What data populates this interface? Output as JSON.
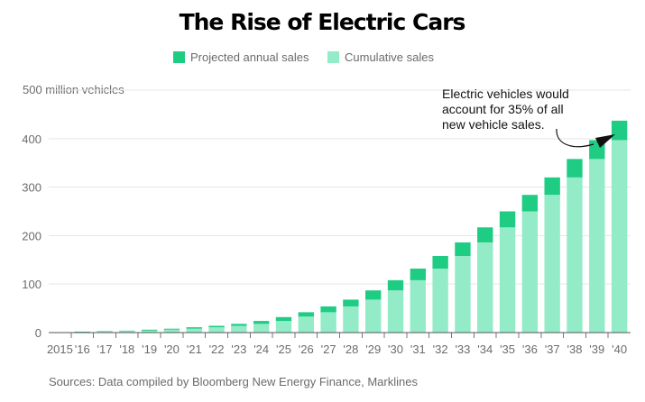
{
  "title": "The Rise of Electric Cars",
  "legend": [
    {
      "label": "Projected annual sales",
      "color": "#1fcc83"
    },
    {
      "label": "Cumulative sales",
      "color": "#93ebc8"
    }
  ],
  "annotation": {
    "lines": [
      "Electric vehicles would",
      "account for 35% of all",
      "new vehicle sales."
    ],
    "target_category": "'40"
  },
  "source": "Sources: Data compiled by Bloomberg New Energy Finance, Marklines",
  "chart_data": {
    "type": "bar",
    "stacked": true,
    "title": "The Rise of Electric Cars",
    "xlabel": "",
    "ylabel": "",
    "y_axis_top_label": "500 million vehicles",
    "y_tick_labels": [
      "0",
      "100",
      "200",
      "300",
      "400"
    ],
    "ylim": [
      0,
      500
    ],
    "y_ticks": [
      0,
      100,
      200,
      300,
      400
    ],
    "grid": true,
    "legend_position": "top-center",
    "categories": [
      "2015",
      "'16",
      "'17",
      "'18",
      "'19",
      "'20",
      "'21",
      "'22",
      "'23",
      "'24",
      "'25",
      "'26",
      "'27",
      "'28",
      "'29",
      "'30",
      "'31",
      "'32",
      "'33",
      "'34",
      "'35",
      "'36",
      "'37",
      "'38",
      "'39",
      "'40"
    ],
    "series": [
      {
        "name": "Cumulative sales",
        "color": "#93ebc8",
        "values": [
          0.5,
          1,
          2,
          3,
          4,
          6,
          8,
          11,
          14,
          18,
          24,
          33,
          42,
          54,
          68,
          87,
          108,
          132,
          158,
          186,
          217,
          250,
          284,
          320,
          358,
          397
        ]
      },
      {
        "name": "Projected annual sales",
        "color": "#1fcc83",
        "values": [
          0.5,
          1,
          1,
          1,
          2,
          2,
          3,
          3,
          4,
          6,
          8,
          9,
          12,
          14,
          19,
          21,
          24,
          26,
          28,
          31,
          33,
          34,
          36,
          38,
          39,
          40
        ]
      }
    ]
  }
}
